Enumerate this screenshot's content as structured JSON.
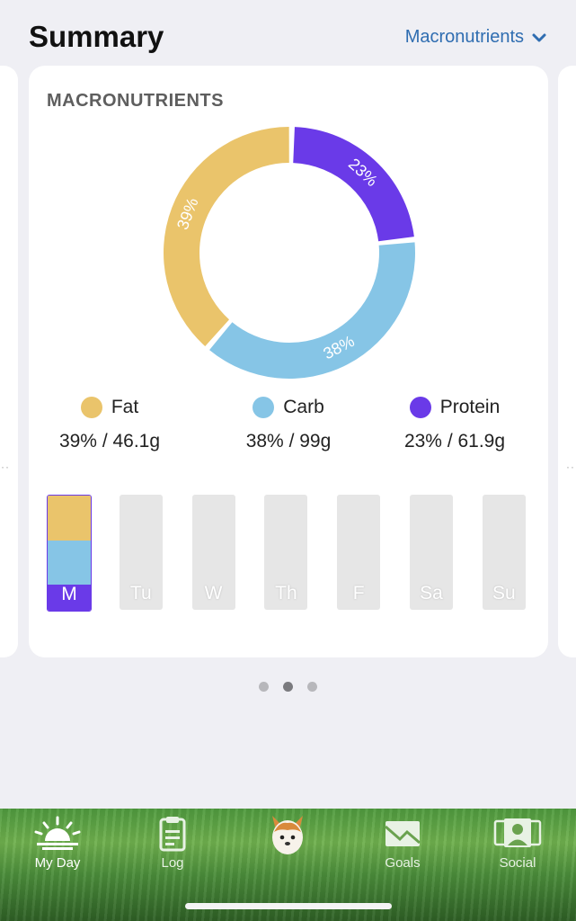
{
  "header": {
    "title": "Summary",
    "dropdown_label": "Macronutrients"
  },
  "card": {
    "title": "MACRONUTRIENTS",
    "donut": [
      {
        "name": "Fat",
        "percent": 39,
        "label": "39%",
        "color": "#eac46b"
      },
      {
        "name": "Carb",
        "percent": 38,
        "label": "38%",
        "color": "#86c5e6"
      },
      {
        "name": "Protein",
        "percent": 23,
        "label": "23%",
        "color": "#6a3ae8"
      }
    ],
    "legend": [
      {
        "name": "Fat",
        "value": "39% / 46.1g",
        "color": "#eac46b"
      },
      {
        "name": "Carb",
        "value": "38% / 99g",
        "color": "#86c5e6"
      },
      {
        "name": "Protein",
        "value": "23% / 61.9g",
        "color": "#6a3ae8"
      }
    ],
    "days": [
      {
        "label": "M",
        "filled": true,
        "fat": 0.39,
        "carb": 0.38,
        "protein": 0.23
      },
      {
        "label": "Tu",
        "filled": false
      },
      {
        "label": "W",
        "filled": false
      },
      {
        "label": "Th",
        "filled": false
      },
      {
        "label": "F",
        "filled": false
      },
      {
        "label": "Sa",
        "filled": false
      },
      {
        "label": "Su",
        "filled": false
      }
    ]
  },
  "pager": {
    "count": 3,
    "active": 1
  },
  "tabs": [
    {
      "label": "My Day",
      "icon": "sunrise-icon",
      "active": true
    },
    {
      "label": "Log",
      "icon": "clipboard-icon",
      "active": false
    },
    {
      "label": "",
      "icon": "dog-mascot-icon",
      "active": false
    },
    {
      "label": "Goals",
      "icon": "chart-mountain-icon",
      "active": false
    },
    {
      "label": "Social",
      "icon": "people-icon",
      "active": false
    }
  ]
}
